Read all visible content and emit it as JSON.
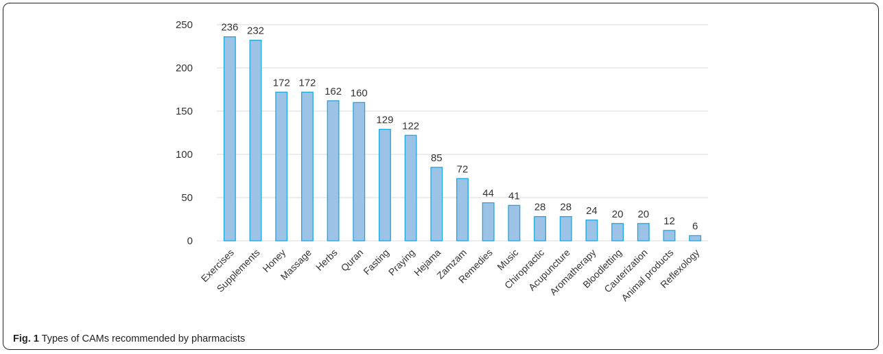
{
  "figure": {
    "label": "Fig. 1",
    "caption": "Types of CAMs recommended by pharmacists"
  },
  "colors": {
    "bar_fill": "#9cc3e5",
    "bar_stroke": "#1aa7e2",
    "grid": "#d9d9d9",
    "axis_text": "#333333"
  },
  "chart_data": {
    "type": "bar",
    "title": "",
    "xlabel": "",
    "ylabel": "",
    "ylim": [
      0,
      250
    ],
    "yticks": [
      0,
      50,
      100,
      150,
      200,
      250
    ],
    "grid": true,
    "legend": "none",
    "categories": [
      "Exercises",
      "Supplements",
      "Honey",
      "Massage",
      "Herbs",
      "Quran",
      "Fasting",
      "Praying",
      "Hejama",
      "Zamzam",
      "Remedies",
      "Music",
      "Chiropractic",
      "Acupuncture",
      "Aromatherapy",
      "Bloodletting",
      "Cauterization",
      "Animal products",
      "Reflexology"
    ],
    "values": [
      236,
      232,
      172,
      172,
      162,
      160,
      129,
      122,
      85,
      72,
      44,
      41,
      28,
      28,
      24,
      20,
      20,
      12,
      6
    ]
  }
}
